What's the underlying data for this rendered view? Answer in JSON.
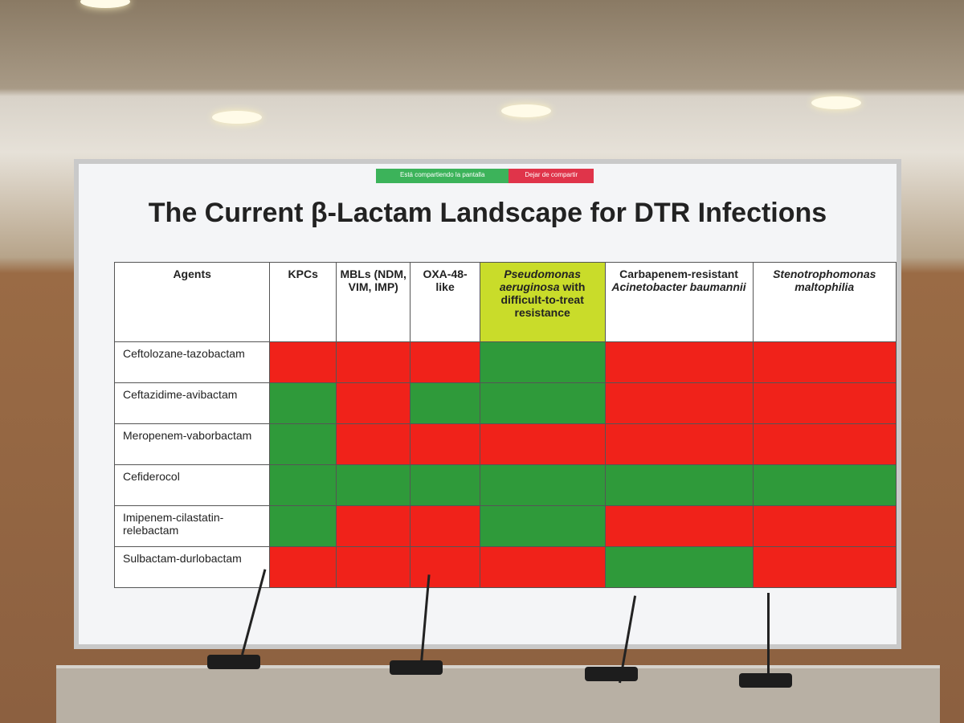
{
  "share_bar": {
    "status": "Está compartiendo la pantalla",
    "stop": "Dejar de compartir"
  },
  "slide": {
    "title": "The Current β-Lactam Landscape for DTR Infections"
  },
  "table": {
    "columns": [
      {
        "parts": [
          {
            "text": "Agents",
            "italic": false
          }
        ]
      },
      {
        "parts": [
          {
            "text": "KPCs",
            "italic": false
          }
        ]
      },
      {
        "parts": [
          {
            "text": "MBLs (NDM, VIM, IMP)",
            "italic": false
          }
        ]
      },
      {
        "parts": [
          {
            "text": "OXA-48-like",
            "italic": false
          }
        ]
      },
      {
        "parts": [
          {
            "text": "Pseudomonas aeruginosa",
            "italic": true
          },
          {
            "text": "with difficult-to-treat resistance",
            "italic": false
          }
        ],
        "highlight": "#c9dc2a"
      },
      {
        "parts": [
          {
            "text": "Carbapenem-resistant",
            "italic": false
          },
          {
            "text": "Acinetobacter baumannii",
            "italic": true
          }
        ]
      },
      {
        "parts": [
          {
            "text": "Stenotrophomonas maltophilia",
            "italic": true
          }
        ]
      }
    ],
    "rows": [
      {
        "agent": "Ceftolozane-tazobactam",
        "cells": [
          "#f0221a",
          "#f0221a",
          "#f0221a",
          "#2f9a3a",
          "#f0221a",
          "#f0221a"
        ]
      },
      {
        "agent": "Ceftazidime-avibactam",
        "cells": [
          "#2f9a3a",
          "#f0221a",
          "#2f9a3a",
          "#2f9a3a",
          "#f0221a",
          "#f0221a"
        ]
      },
      {
        "agent": "Meropenem-vaborbactam",
        "cells": [
          "#2f9a3a",
          "#f0221a",
          "#f0221a",
          "#f0221a",
          "#f0221a",
          "#f0221a"
        ]
      },
      {
        "agent": "Cefiderocol",
        "cells": [
          "#2f9a3a",
          "#2f9a3a",
          "#2f9a3a",
          "#2f9a3a",
          "#2f9a3a",
          "#2f9a3a"
        ]
      },
      {
        "agent": "Imipenem-cilastatin-relebactam",
        "cells": [
          "#2f9a3a",
          "#f0221a",
          "#f0221a",
          "#2f9a3a",
          "#f0221a",
          "#f0221a"
        ]
      },
      {
        "agent": "Sulbactam-durlobactam",
        "cells": [
          "#f0221a",
          "#f0221a",
          "#f0221a",
          "#f0221a",
          "#2f9a3a",
          "#f0221a"
        ]
      }
    ]
  }
}
